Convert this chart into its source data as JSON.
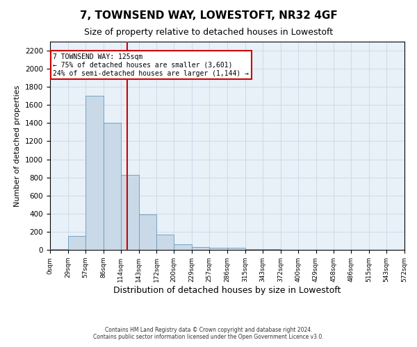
{
  "title": "7, TOWNSEND WAY, LOWESTOFT, NR32 4GF",
  "subtitle": "Size of property relative to detached houses in Lowestoft",
  "xlabel": "Distribution of detached houses by size in Lowestoft",
  "ylabel": "Number of detached properties",
  "bar_color": "#c9d9e8",
  "bar_edge_color": "#6699bb",
  "bin_edges": [
    0,
    29,
    57,
    86,
    114,
    143,
    172,
    200,
    229,
    257,
    286,
    315,
    343,
    372,
    400,
    429,
    458,
    486,
    515,
    543,
    572
  ],
  "bar_heights": [
    10,
    155,
    1700,
    1400,
    830,
    390,
    165,
    65,
    30,
    25,
    25,
    10,
    10,
    0,
    0,
    0,
    0,
    0,
    0,
    0
  ],
  "tick_labels": [
    "0sqm",
    "29sqm",
    "57sqm",
    "86sqm",
    "114sqm",
    "143sqm",
    "172sqm",
    "200sqm",
    "229sqm",
    "257sqm",
    "286sqm",
    "315sqm",
    "343sqm",
    "372sqm",
    "400sqm",
    "429sqm",
    "458sqm",
    "486sqm",
    "515sqm",
    "543sqm",
    "572sqm"
  ],
  "ylim": [
    0,
    2300
  ],
  "yticks": [
    0,
    200,
    400,
    600,
    800,
    1000,
    1200,
    1400,
    1600,
    1800,
    2000,
    2200
  ],
  "property_size": 125,
  "vline_color": "#cc0000",
  "annotation_title": "7 TOWNSEND WAY: 125sqm",
  "annotation_line1": "← 75% of detached houses are smaller (3,601)",
  "annotation_line2": "24% of semi-detached houses are larger (1,144) →",
  "annotation_box_color": "#ffffff",
  "annotation_box_edge": "#cc0000",
  "grid_color": "#c8d8e8",
  "background_color": "#e8f0f8",
  "footer1": "Contains HM Land Registry data © Crown copyright and database right 2024.",
  "footer2": "Contains public sector information licensed under the Open Government Licence v3.0.",
  "title_fontsize": 11,
  "subtitle_fontsize": 9,
  "xlabel_fontsize": 9,
  "ylabel_fontsize": 8
}
